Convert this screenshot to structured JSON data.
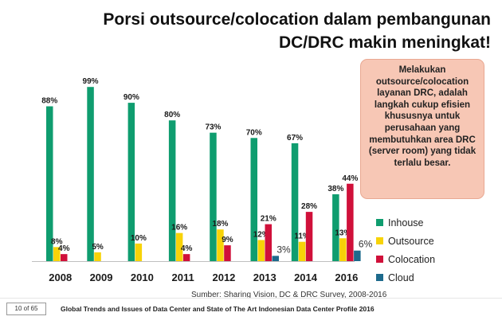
{
  "slide": {
    "title_lines": [
      "Porsi outsource/colocation dalam pembangunan",
      "DC/DRC makin meningkat!"
    ],
    "callout": "Melakukan outsource/colocation layanan DRC, adalah langkah cukup efisien khususnya untuk perusahaan yang membutuhkan area DRC (server room) yang tidak terlalu besar.",
    "source": "Sumber: Sharing Vision, DC & DRC Survey, 2008-2016",
    "page": "10 of 65",
    "footer": "Global Trends and Issues of Data Center and State of The Art Indonesian Data Center Profile 2016"
  },
  "chart_data": {
    "type": "bar",
    "categories": [
      "2008",
      "2009",
      "2010",
      "2011",
      "2012",
      "2013",
      "2014",
      "2016"
    ],
    "series": [
      {
        "name": "Inhouse",
        "color": "#0f9d6f",
        "values": [
          88,
          99,
          90,
          80,
          73,
          70,
          67,
          38
        ],
        "labels": [
          "88%",
          "99%",
          "90%",
          "80%",
          "73%",
          "70%",
          "67%",
          "38%"
        ]
      },
      {
        "name": "Outsource",
        "color": "#f7d308",
        "values": [
          8,
          5,
          10,
          16,
          18,
          12,
          11,
          13
        ],
        "labels": [
          "8%",
          "5%",
          "10%",
          "16%",
          "18%",
          "12%",
          "11%",
          "13%"
        ]
      },
      {
        "name": "Colocation",
        "color": "#d0103a",
        "values": [
          4,
          0,
          0,
          4,
          9,
          21,
          28,
          44
        ],
        "labels": [
          "4%",
          "",
          "",
          "4%",
          "9%",
          "21%",
          "28%",
          "44%"
        ]
      },
      {
        "name": "Cloud",
        "color": "#1d6a8c",
        "values": [
          0,
          0,
          0,
          0,
          0,
          3,
          0,
          6
        ],
        "labels": [
          "",
          "",
          "",
          "",
          "",
          "3%",
          "",
          "6%"
        ]
      }
    ],
    "ylim": [
      0,
      100
    ],
    "legend": "right",
    "grid": false
  }
}
